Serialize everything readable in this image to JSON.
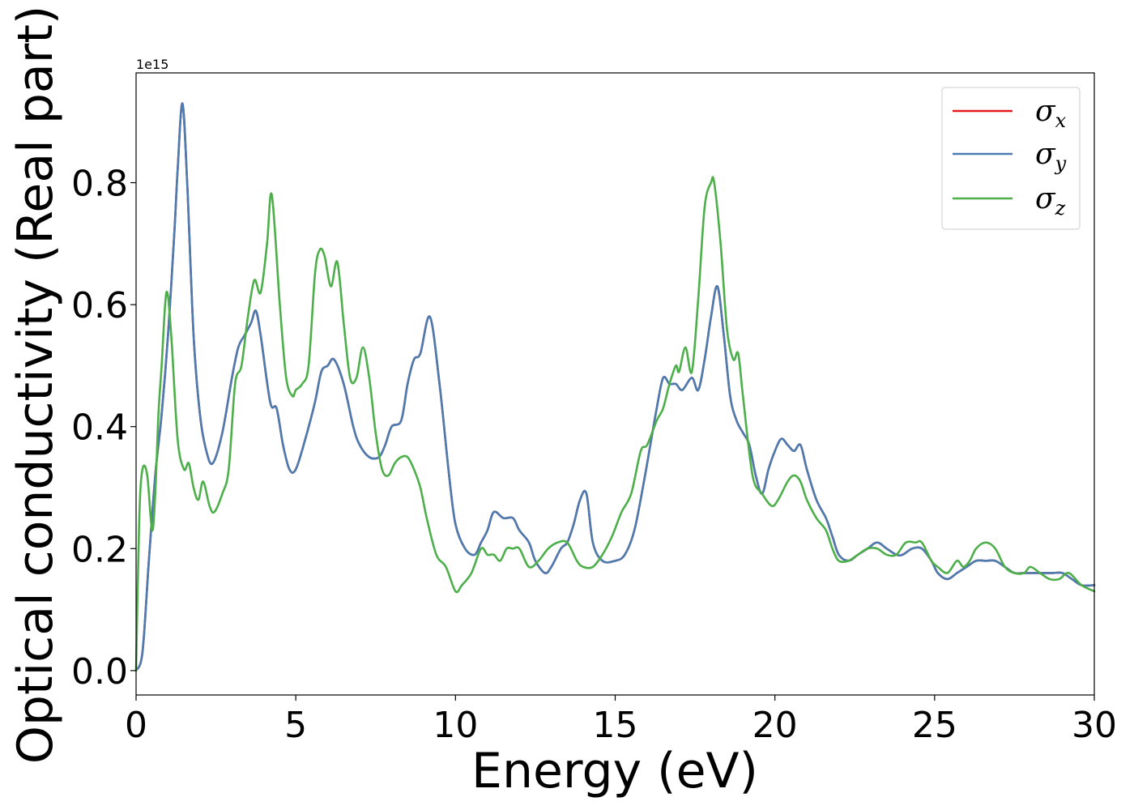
{
  "chart_data": {
    "type": "line",
    "xlabel": "Energy (eV)",
    "ylabel": "Optical conductivity (Real part)",
    "y_offset_label": "1e15",
    "xlim": [
      0,
      30
    ],
    "ylim": [
      -0.04,
      0.98
    ],
    "xticks": [
      0,
      5,
      10,
      15,
      20,
      25,
      30
    ],
    "yticks": [
      0.0,
      0.2,
      0.4,
      0.6,
      0.8
    ],
    "ytick_labels": [
      "0.0",
      "0.2",
      "0.4",
      "0.6",
      "0.8"
    ],
    "legend_position": "top-right",
    "colors": {
      "sigma_x": "#e41a1c",
      "sigma_y": "#4a7cb2",
      "sigma_z": "#4daf4a"
    },
    "series": [
      {
        "name": "σx",
        "symbol": "σ",
        "subscript": "x",
        "key": "sigma_x",
        "x": [
          0,
          0.2,
          0.4,
          0.6,
          0.8,
          1.0,
          1.2,
          1.3,
          1.45,
          1.6,
          1.8,
          2.0,
          2.2,
          2.4,
          2.7,
          3.0,
          3.2,
          3.4,
          3.6,
          3.75,
          3.9,
          4.2,
          4.4,
          4.6,
          4.8,
          5.0,
          5.3,
          5.6,
          5.8,
          6.0,
          6.2,
          6.5,
          6.8,
          7.0,
          7.3,
          7.6,
          7.8,
          8.0,
          8.3,
          8.5,
          8.7,
          8.9,
          9.2,
          9.5,
          9.8,
          10.0,
          10.3,
          10.6,
          10.8,
          11.0,
          11.2,
          11.5,
          11.8,
          12.0,
          12.3,
          12.5,
          12.8,
          13.0,
          13.3,
          13.5,
          13.7,
          13.9,
          14.1,
          14.3,
          14.6,
          15.0,
          15.3,
          15.6,
          15.9,
          16.1,
          16.3,
          16.5,
          16.7,
          16.9,
          17.1,
          17.4,
          17.6,
          17.8,
          18.0,
          18.2,
          18.4,
          18.6,
          18.8,
          19.0,
          19.2,
          19.4,
          19.6,
          19.8,
          20.0,
          20.2,
          20.4,
          20.6,
          20.8,
          21.0,
          21.3,
          21.6,
          21.8,
          22.0,
          22.3,
          22.6,
          22.9,
          23.2,
          23.5,
          23.8,
          24.0,
          24.3,
          24.6,
          24.9,
          25.1,
          25.4,
          25.7,
          26.0,
          26.3,
          26.6,
          26.9,
          27.2,
          27.5,
          27.8,
          28.1,
          28.4,
          28.7,
          29.0,
          29.3,
          29.6,
          30.0
        ],
        "y": [
          0.0,
          0.03,
          0.18,
          0.32,
          0.42,
          0.55,
          0.72,
          0.82,
          0.93,
          0.8,
          0.55,
          0.42,
          0.36,
          0.34,
          0.39,
          0.48,
          0.53,
          0.55,
          0.57,
          0.59,
          0.55,
          0.44,
          0.43,
          0.37,
          0.33,
          0.33,
          0.38,
          0.44,
          0.49,
          0.5,
          0.51,
          0.47,
          0.4,
          0.37,
          0.35,
          0.35,
          0.37,
          0.4,
          0.41,
          0.47,
          0.51,
          0.52,
          0.58,
          0.47,
          0.32,
          0.24,
          0.2,
          0.19,
          0.21,
          0.23,
          0.26,
          0.25,
          0.25,
          0.23,
          0.21,
          0.18,
          0.16,
          0.17,
          0.2,
          0.21,
          0.24,
          0.28,
          0.29,
          0.21,
          0.18,
          0.18,
          0.19,
          0.23,
          0.31,
          0.37,
          0.43,
          0.48,
          0.47,
          0.47,
          0.46,
          0.48,
          0.46,
          0.51,
          0.58,
          0.63,
          0.55,
          0.45,
          0.41,
          0.39,
          0.37,
          0.32,
          0.29,
          0.33,
          0.36,
          0.38,
          0.37,
          0.36,
          0.37,
          0.33,
          0.28,
          0.25,
          0.22,
          0.19,
          0.18,
          0.19,
          0.2,
          0.21,
          0.2,
          0.19,
          0.19,
          0.2,
          0.2,
          0.18,
          0.16,
          0.15,
          0.16,
          0.17,
          0.18,
          0.18,
          0.18,
          0.17,
          0.16,
          0.16,
          0.16,
          0.16,
          0.16,
          0.16,
          0.15,
          0.14,
          0.14
        ]
      },
      {
        "name": "σy",
        "symbol": "σ",
        "subscript": "y",
        "key": "sigma_y",
        "x": [
          0,
          0.2,
          0.4,
          0.6,
          0.8,
          1.0,
          1.2,
          1.3,
          1.45,
          1.6,
          1.8,
          2.0,
          2.2,
          2.4,
          2.7,
          3.0,
          3.2,
          3.4,
          3.6,
          3.75,
          3.9,
          4.2,
          4.4,
          4.6,
          4.8,
          5.0,
          5.3,
          5.6,
          5.8,
          6.0,
          6.2,
          6.5,
          6.8,
          7.0,
          7.3,
          7.6,
          7.8,
          8.0,
          8.3,
          8.5,
          8.7,
          8.9,
          9.2,
          9.5,
          9.8,
          10.0,
          10.3,
          10.6,
          10.8,
          11.0,
          11.2,
          11.5,
          11.8,
          12.0,
          12.3,
          12.5,
          12.8,
          13.0,
          13.3,
          13.5,
          13.7,
          13.9,
          14.1,
          14.3,
          14.6,
          15.0,
          15.3,
          15.6,
          15.9,
          16.1,
          16.3,
          16.5,
          16.7,
          16.9,
          17.1,
          17.4,
          17.6,
          17.8,
          18.0,
          18.2,
          18.4,
          18.6,
          18.8,
          19.0,
          19.2,
          19.4,
          19.6,
          19.8,
          20.0,
          20.2,
          20.4,
          20.6,
          20.8,
          21.0,
          21.3,
          21.6,
          21.8,
          22.0,
          22.3,
          22.6,
          22.9,
          23.2,
          23.5,
          23.8,
          24.0,
          24.3,
          24.6,
          24.9,
          25.1,
          25.4,
          25.7,
          26.0,
          26.3,
          26.6,
          26.9,
          27.2,
          27.5,
          27.8,
          28.1,
          28.4,
          28.7,
          29.0,
          29.3,
          29.6,
          30.0
        ],
        "y": [
          0.0,
          0.03,
          0.18,
          0.32,
          0.42,
          0.55,
          0.72,
          0.82,
          0.93,
          0.8,
          0.55,
          0.42,
          0.36,
          0.34,
          0.39,
          0.48,
          0.53,
          0.55,
          0.57,
          0.59,
          0.55,
          0.44,
          0.43,
          0.37,
          0.33,
          0.33,
          0.38,
          0.44,
          0.49,
          0.5,
          0.51,
          0.47,
          0.4,
          0.37,
          0.35,
          0.35,
          0.37,
          0.4,
          0.41,
          0.47,
          0.51,
          0.52,
          0.58,
          0.47,
          0.32,
          0.24,
          0.2,
          0.19,
          0.21,
          0.23,
          0.26,
          0.25,
          0.25,
          0.23,
          0.21,
          0.18,
          0.16,
          0.17,
          0.2,
          0.21,
          0.24,
          0.28,
          0.29,
          0.21,
          0.18,
          0.18,
          0.19,
          0.23,
          0.31,
          0.37,
          0.43,
          0.48,
          0.47,
          0.47,
          0.46,
          0.48,
          0.46,
          0.51,
          0.58,
          0.63,
          0.55,
          0.45,
          0.41,
          0.39,
          0.37,
          0.32,
          0.29,
          0.33,
          0.36,
          0.38,
          0.37,
          0.36,
          0.37,
          0.33,
          0.28,
          0.25,
          0.22,
          0.19,
          0.18,
          0.19,
          0.2,
          0.21,
          0.2,
          0.19,
          0.19,
          0.2,
          0.2,
          0.18,
          0.16,
          0.15,
          0.16,
          0.17,
          0.18,
          0.18,
          0.18,
          0.17,
          0.16,
          0.16,
          0.16,
          0.16,
          0.16,
          0.16,
          0.15,
          0.14,
          0.14
        ]
      },
      {
        "name": "σz",
        "symbol": "σ",
        "subscript": "z",
        "key": "sigma_z",
        "x": [
          0,
          0.1,
          0.2,
          0.35,
          0.5,
          0.6,
          0.7,
          0.8,
          0.95,
          1.1,
          1.3,
          1.5,
          1.65,
          1.8,
          1.95,
          2.1,
          2.3,
          2.45,
          2.7,
          2.9,
          3.1,
          3.3,
          3.5,
          3.7,
          3.9,
          4.1,
          4.25,
          4.5,
          4.7,
          4.9,
          5.0,
          5.2,
          5.4,
          5.6,
          5.75,
          5.9,
          6.1,
          6.3,
          6.5,
          6.7,
          6.9,
          7.1,
          7.3,
          7.5,
          7.7,
          7.9,
          8.1,
          8.3,
          8.5,
          8.7,
          8.9,
          9.1,
          9.4,
          9.7,
          10.0,
          10.2,
          10.5,
          10.8,
          11.0,
          11.2,
          11.4,
          11.6,
          11.8,
          12.0,
          12.3,
          12.6,
          12.9,
          13.2,
          13.5,
          13.8,
          14.0,
          14.3,
          14.6,
          14.9,
          15.2,
          15.5,
          15.8,
          16.0,
          16.3,
          16.5,
          16.7,
          16.9,
          17.0,
          17.2,
          17.4,
          17.6,
          17.8,
          18.0,
          18.1,
          18.3,
          18.5,
          18.7,
          18.85,
          19.0,
          19.3,
          19.6,
          19.9,
          20.1,
          20.4,
          20.6,
          20.8,
          21.0,
          21.3,
          21.6,
          21.8,
          22.0,
          22.3,
          22.6,
          22.9,
          23.2,
          23.5,
          23.8,
          24.1,
          24.4,
          24.6,
          24.9,
          25.1,
          25.4,
          25.7,
          25.9,
          26.1,
          26.3,
          26.6,
          26.9,
          27.2,
          27.5,
          27.8,
          28.0,
          28.3,
          28.6,
          28.9,
          29.2,
          29.6,
          30.0
        ],
        "y": [
          0.0,
          0.25,
          0.33,
          0.32,
          0.23,
          0.29,
          0.42,
          0.5,
          0.62,
          0.55,
          0.38,
          0.33,
          0.34,
          0.3,
          0.28,
          0.31,
          0.27,
          0.26,
          0.29,
          0.33,
          0.47,
          0.5,
          0.58,
          0.64,
          0.62,
          0.7,
          0.78,
          0.6,
          0.48,
          0.45,
          0.46,
          0.47,
          0.5,
          0.65,
          0.69,
          0.68,
          0.63,
          0.67,
          0.57,
          0.48,
          0.48,
          0.53,
          0.48,
          0.39,
          0.33,
          0.32,
          0.34,
          0.35,
          0.35,
          0.33,
          0.3,
          0.25,
          0.19,
          0.17,
          0.13,
          0.14,
          0.16,
          0.2,
          0.19,
          0.19,
          0.18,
          0.2,
          0.2,
          0.2,
          0.17,
          0.18,
          0.2,
          0.21,
          0.21,
          0.18,
          0.17,
          0.17,
          0.19,
          0.22,
          0.26,
          0.29,
          0.36,
          0.37,
          0.41,
          0.43,
          0.47,
          0.5,
          0.49,
          0.53,
          0.49,
          0.61,
          0.76,
          0.8,
          0.8,
          0.7,
          0.56,
          0.51,
          0.52,
          0.45,
          0.32,
          0.29,
          0.27,
          0.28,
          0.31,
          0.32,
          0.31,
          0.28,
          0.25,
          0.23,
          0.2,
          0.18,
          0.18,
          0.19,
          0.2,
          0.2,
          0.19,
          0.19,
          0.21,
          0.21,
          0.21,
          0.18,
          0.17,
          0.16,
          0.18,
          0.17,
          0.18,
          0.2,
          0.21,
          0.2,
          0.17,
          0.16,
          0.16,
          0.17,
          0.16,
          0.15,
          0.15,
          0.16,
          0.14,
          0.13
        ]
      }
    ]
  }
}
